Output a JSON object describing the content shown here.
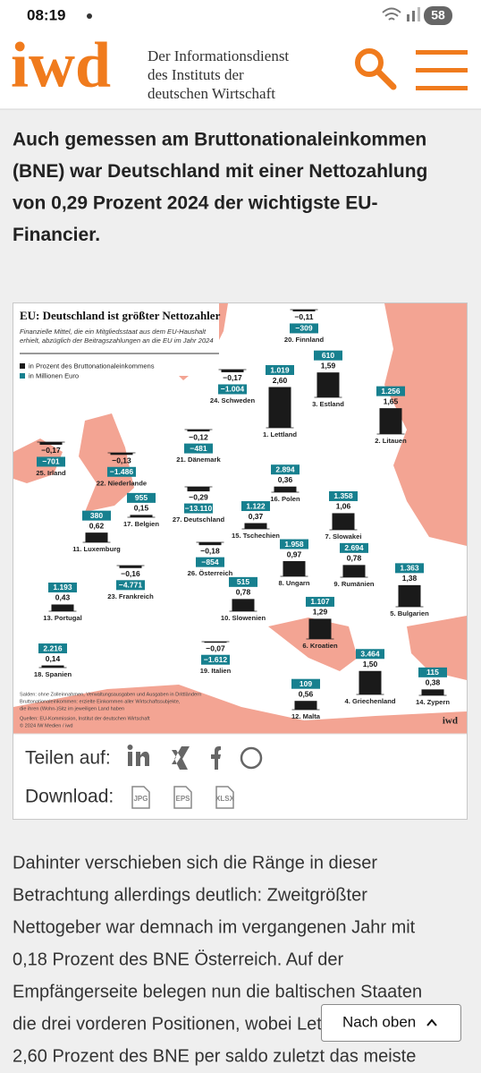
{
  "status_bar": {
    "time": "08:19",
    "battery": "58"
  },
  "header": {
    "logo": "iwd",
    "tagline": [
      "Der Informationsdienst",
      "des Instituts der",
      "deutschen Wirtschaft"
    ]
  },
  "headline": [
    "Auch gemessen am Bruttonationaleinkommen",
    "(BNE) war Deutschland mit einer Nettozahlung",
    "von 0,29 Prozent 2024 der wichtigste EU-",
    "Financier."
  ],
  "chart_data": {
    "type": "bar",
    "title": "EU: Deutschland ist größter Nettozahler",
    "subtitle": [
      "Finanzielle Mittel, die ein Mitgliedsstaat aus dem EU-Haushalt",
      "erhielt, abzüglich der Beitragszahlungen an die EU im Jahr 2024"
    ],
    "categories": [
      "1. Lettland",
      "2. Litauen",
      "3. Estland",
      "4. Griechenland",
      "5. Bulgarien",
      "6. Kroatien",
      "7. Slowakei",
      "8. Ungarn",
      "9. Rumänien",
      "10. Slowenien",
      "11. Luxemburg",
      "12. Malta",
      "13. Portugal",
      "14. Zypern",
      "15. Tschechien",
      "16. Polen",
      "17. Belgien",
      "18. Spanien",
      "19. Italien",
      "20. Finnland",
      "21. Dänemark",
      "22. Niederlande",
      "23. Frankreich",
      "24. Schweden",
      "25. Irland",
      "26. Österreich",
      "27. Deutschland"
    ],
    "series": [
      {
        "name": "in Prozent des Bruttonationaleinkommens",
        "color": "#1a1a1a",
        "values": [
          2.6,
          1.65,
          1.59,
          1.5,
          1.38,
          1.29,
          1.06,
          0.97,
          0.78,
          0.78,
          0.62,
          0.56,
          0.43,
          0.38,
          0.37,
          0.36,
          0.15,
          0.14,
          -0.07,
          -0.11,
          -0.12,
          -0.13,
          -0.16,
          -0.17,
          -0.17,
          -0.18,
          -0.29
        ],
        "value_labels": [
          "2,60",
          "1,65",
          "1,59",
          "1,50",
          "1,38",
          "1,29",
          "1,06",
          "0,97",
          "0,78",
          "0,78",
          "0,62",
          "0,56",
          "0,43",
          "0,38",
          "0,37",
          "0,36",
          "0,15",
          "0,14",
          "−0,07",
          "−0,11",
          "−0,12",
          "−0,13",
          "−0,16",
          "−0,17",
          "−0,17",
          "−0,18",
          "−0,29"
        ]
      },
      {
        "name": "in Millionen Euro",
        "color": "#17808f",
        "values": [
          1019,
          1256,
          610,
          3464,
          1363,
          1107,
          1358,
          1958,
          2694,
          515,
          380,
          109,
          1193,
          115,
          1122,
          2894,
          955,
          2216,
          -1612,
          -309,
          -481,
          -1486,
          -4771,
          -1004,
          -701,
          -854,
          -13110
        ],
        "value_labels": [
          "1.019",
          "1.256",
          "610",
          "3.464",
          "1.363",
          "1.107",
          "1.358",
          "1.958",
          "2.694",
          "515",
          "380",
          "109",
          "1.193",
          "115",
          "1.122",
          "2.894",
          "955",
          "2.216",
          "−1.612",
          "−309",
          "−481",
          "−1.486",
          "−4.771",
          "−1.004",
          "−701",
          "−854",
          "−13.110"
        ]
      }
    ],
    "notes": [
      "Salden: ohne Zolleinnahmen, Verwaltungsausgaben und Ausgaben in Drittländern",
      "Bruttonationaleinkommen: erzielte Einkommen aller Wirtschaftssubjekte,",
      "die ihren (Wohn-)Sitz im jeweiligen Land haben",
      "Quellen: EU-Kommission, Institut der deutschen Wirtschaft",
      "© 2024 IW Medien / iwd"
    ],
    "brand": "iwd"
  },
  "share": {
    "label": "Teilen auf:",
    "download_label": "Download:",
    "formats": [
      "JPG",
      "EPS",
      "XLSX"
    ]
  },
  "body": [
    "Dahinter verschieben sich die Ränge in dieser",
    "Betrachtung allerdings deutlich: Zweitgrößter",
    "Nettogeber war demnach im vergangenen Jahr mit",
    "0,18 Prozent des BNE Österreich. Auf der",
    "Empfängerseite belegen nun die baltischen Staaten",
    "die drei vorderen Positionen, wobei Lettland mit",
    "2,60 Prozent des BNE per saldo zuletzt das meiste"
  ],
  "button": "Nach oben"
}
